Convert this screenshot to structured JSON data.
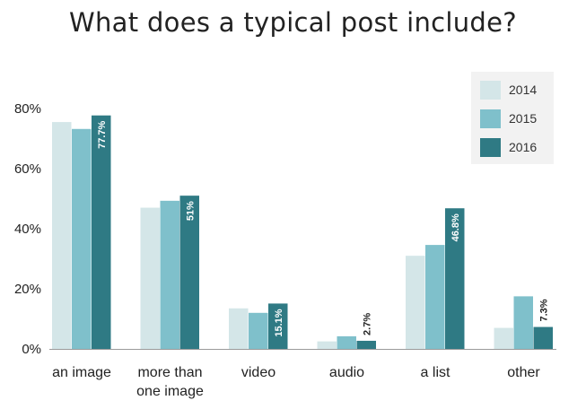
{
  "chart_data": {
    "type": "bar",
    "title": "What does a typical post include?",
    "xlabel": "",
    "ylabel": "",
    "categories": [
      [
        "an image"
      ],
      [
        "more than",
        "one image"
      ],
      [
        "video"
      ],
      [
        "audio"
      ],
      [
        "a list"
      ],
      [
        "other"
      ]
    ],
    "series": [
      {
        "name": "2014",
        "color": "#d4e6e8",
        "values": [
          75.5,
          47,
          13.5,
          2.5,
          31,
          7
        ]
      },
      {
        "name": "2015",
        "color": "#7fc0cb",
        "values": [
          73.2,
          49.3,
          12,
          4.2,
          34.6,
          17.5
        ]
      },
      {
        "name": "2016",
        "color": "#2f7a84",
        "values": [
          77.7,
          51,
          15.1,
          2.7,
          46.8,
          7.3
        ]
      }
    ],
    "data_labels": [
      "77.7%",
      "51%",
      "15.1%",
      "2.7%",
      "46.8%",
      "7.3%"
    ],
    "data_label_series": "2016",
    "ylim": [
      0,
      80
    ],
    "yticks": [
      0,
      20,
      40,
      60,
      80
    ],
    "ytick_labels": [
      "0%",
      "20%",
      "40%",
      "60%",
      "80%"
    ],
    "grid": false,
    "legend": "top-right"
  }
}
